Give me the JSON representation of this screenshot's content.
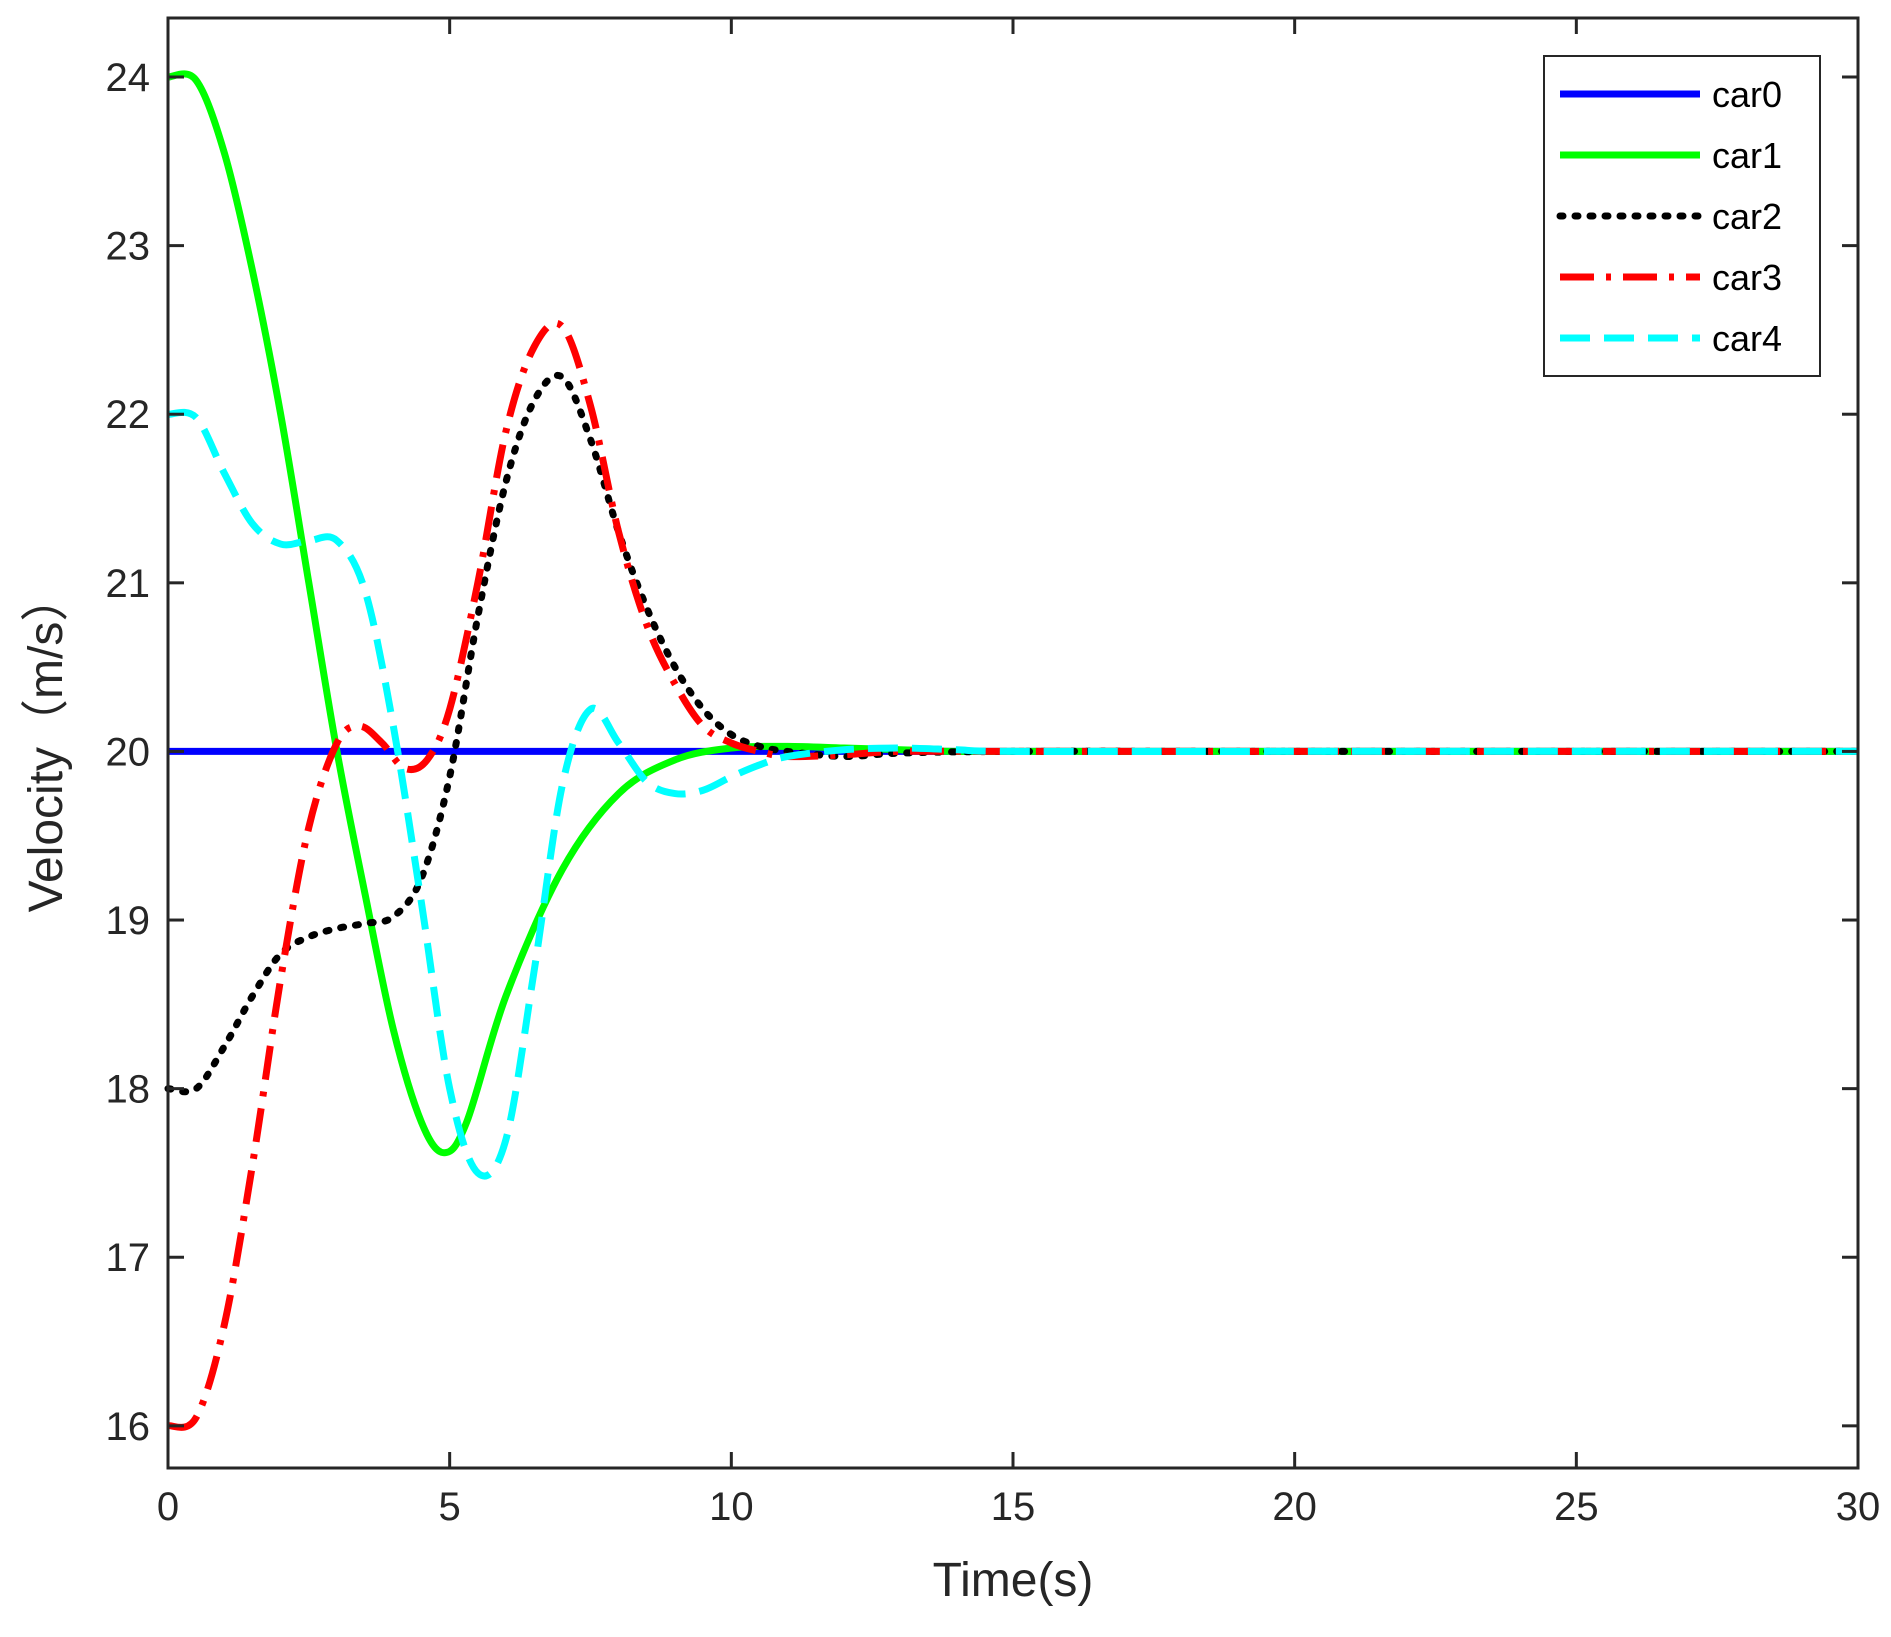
{
  "chart_data": {
    "type": "line",
    "title": "",
    "xlabel": "Time(s)",
    "ylabel": "Velocity（m/s）",
    "xlim": [
      0,
      30
    ],
    "ylim": [
      15.75,
      24.35
    ],
    "xticks": [
      0,
      5,
      10,
      15,
      20,
      25,
      30
    ],
    "yticks": [
      16,
      17,
      18,
      19,
      20,
      21,
      22,
      23,
      24
    ],
    "grid": false,
    "legend_position": "top-right",
    "series": [
      {
        "name": "car0",
        "color": "#0000ff",
        "style": "solid",
        "x": [
          0,
          5,
          10,
          15,
          20,
          25,
          30
        ],
        "y": [
          20.0,
          20.0,
          20.0,
          20.0,
          20.0,
          20.0,
          20.0
        ]
      },
      {
        "name": "car1",
        "color": "#00ff00",
        "style": "solid",
        "x": [
          0,
          0.5,
          1,
          1.5,
          2,
          2.5,
          3,
          3.5,
          4,
          4.5,
          4.9,
          5.3,
          6,
          7,
          8,
          9,
          10,
          11,
          12,
          13,
          14,
          15,
          20,
          25,
          30
        ],
        "y": [
          24.0,
          23.98,
          23.55,
          22.85,
          22.0,
          21.0,
          20.0,
          19.15,
          18.35,
          17.8,
          17.62,
          17.8,
          18.55,
          19.3,
          19.75,
          19.95,
          20.02,
          20.03,
          20.02,
          20.01,
          20.0,
          20.0,
          20.0,
          20.0,
          20.0
        ]
      },
      {
        "name": "car2",
        "color": "#000000",
        "style": "dotted",
        "x": [
          0,
          0.5,
          1,
          1.5,
          2,
          2.5,
          3,
          3.5,
          4,
          4.5,
          5,
          5.5,
          6,
          6.5,
          7,
          7.5,
          8,
          8.5,
          9,
          9.5,
          10,
          10.5,
          11,
          12,
          13,
          15,
          20,
          25,
          30
        ],
        "y": [
          18.0,
          18.0,
          18.25,
          18.55,
          18.8,
          18.9,
          18.95,
          18.98,
          19.02,
          19.25,
          19.85,
          20.8,
          21.6,
          22.08,
          22.22,
          21.85,
          21.3,
          20.85,
          20.5,
          20.25,
          20.1,
          20.03,
          20.0,
          19.97,
          19.99,
          20.0,
          20.0,
          20.0,
          20.0
        ]
      },
      {
        "name": "car3",
        "color": "#ff0000",
        "style": "dashdot",
        "x": [
          0,
          0.5,
          1,
          1.5,
          2,
          2.5,
          3,
          3.4,
          3.8,
          4.2,
          4.6,
          5,
          5.5,
          6,
          6.5,
          7,
          7.5,
          8,
          8.5,
          9,
          9.5,
          10,
          10.5,
          11,
          12,
          13,
          15,
          20,
          25,
          30
        ],
        "y": [
          16.0,
          16.05,
          16.6,
          17.55,
          18.65,
          19.55,
          20.05,
          20.15,
          20.05,
          19.9,
          19.95,
          20.25,
          21.0,
          21.9,
          22.4,
          22.52,
          22.05,
          21.3,
          20.75,
          20.4,
          20.15,
          20.05,
          20.0,
          19.97,
          19.98,
          20.0,
          20.0,
          20.0,
          20.0,
          20.0
        ]
      },
      {
        "name": "car4",
        "color": "#00ffff",
        "style": "dashed",
        "x": [
          0,
          0.5,
          1,
          1.5,
          2,
          2.5,
          3,
          3.5,
          4,
          4.5,
          5,
          5.5,
          6,
          6.5,
          7,
          7.5,
          8,
          8.5,
          9,
          9.5,
          10,
          10.5,
          11,
          12,
          13,
          14,
          15,
          20,
          25,
          30
        ],
        "y": [
          22.0,
          21.98,
          21.65,
          21.35,
          21.23,
          21.25,
          21.25,
          20.95,
          20.15,
          19.1,
          18.0,
          17.5,
          17.7,
          18.7,
          19.8,
          20.25,
          20.05,
          19.82,
          19.75,
          19.77,
          19.85,
          19.92,
          19.97,
          20.01,
          20.02,
          20.01,
          20.0,
          20.0,
          20.0,
          20.0
        ]
      }
    ]
  }
}
